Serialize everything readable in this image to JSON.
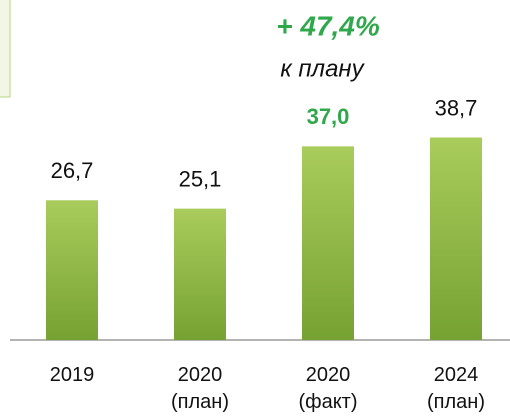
{
  "chart_data": {
    "type": "bar",
    "categories": [
      "2019",
      "2020\n(план)",
      "2020\n(факт)",
      "2024\n(план)"
    ],
    "values": [
      26.7,
      25.1,
      37.0,
      38.7
    ],
    "value_labels": [
      "26,7",
      "25,1",
      "37,0",
      "38,7"
    ],
    "value_label_colors": [
      "#111111",
      "#111111",
      "#2ea84a",
      "#111111"
    ],
    "color": "#8db83f",
    "ylim": [
      0,
      60
    ],
    "annotations": [
      "+ 47,4%",
      "к плану"
    ]
  }
}
